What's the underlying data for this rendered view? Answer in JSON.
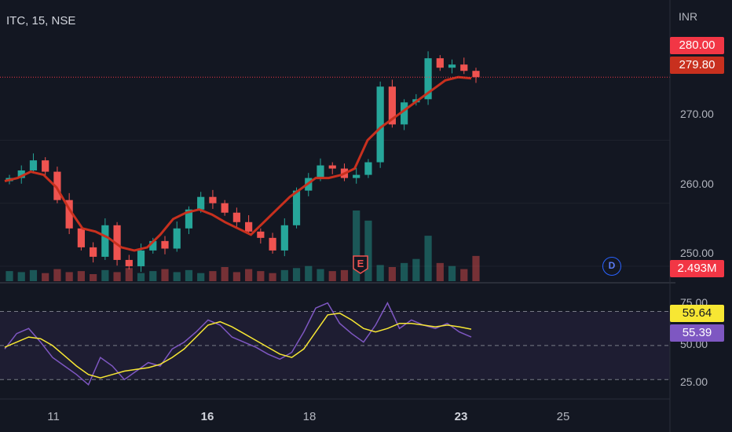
{
  "header": {
    "title": "ITC, 15, NSE"
  },
  "currency": "INR",
  "chart_data": [
    {
      "type": "candlestick",
      "title": "ITC, 15, NSE",
      "y_ticks": [
        "270.00",
        "260.00",
        "250.00"
      ],
      "ylim": [
        248,
        290
      ],
      "x_ticks": [
        {
          "label": "11",
          "bold": false
        },
        {
          "label": "16",
          "bold": true
        },
        {
          "label": "18",
          "bold": false
        },
        {
          "label": "23",
          "bold": true
        },
        {
          "label": "25",
          "bold": false
        }
      ],
      "series": [
        {
          "name": "",
          "values": [
            264.0,
            265.2,
            266.8,
            265.0,
            260.5,
            256.0,
            253.0,
            251.5,
            256.5,
            251.0,
            250.0,
            252.5,
            254.0,
            252.8,
            256.0,
            259.0,
            261.0,
            260.0,
            258.5,
            257.0,
            255.5,
            254.5,
            252.5,
            256.5,
            262.0,
            264.0,
            266.0,
            265.5,
            264.0,
            264.5,
            266.5,
            278.5,
            272.5,
            276.0,
            276.5,
            283.0,
            281.5,
            282.0,
            281.0,
            280.0
          ]
        },
        {
          "name": "",
          "values": [
            263.5,
            264.0,
            265.0,
            264.5,
            262.5,
            259.0,
            256.0,
            255.5,
            254.5,
            253.0,
            252.5,
            253.0,
            255.0,
            257.5,
            258.5,
            259.0,
            258.2,
            257.0,
            256.0,
            255.0,
            257.0,
            259.0,
            261.0,
            262.5,
            264.0,
            264.0,
            264.5,
            265.5,
            270.0,
            272.0,
            273.5,
            275.0,
            276.5,
            278.0,
            279.5,
            280.0,
            279.8
          ]
        }
      ],
      "volume_label": "2.493M",
      "volume_values": [
        1.0,
        0.9,
        1.1,
        0.8,
        1.2,
        0.9,
        1.0,
        0.7,
        1.1,
        0.9,
        1.3,
        0.8,
        1.0,
        1.2,
        0.9,
        1.1,
        0.8,
        1.0,
        1.4,
        0.9,
        1.2,
        1.0,
        0.8,
        1.1,
        1.3,
        1.5,
        1.2,
        1.0,
        1.1,
        7.0,
        6.0,
        1.6,
        1.4,
        1.8,
        2.2,
        4.5,
        1.8,
        1.5,
        1.2,
        2.5
      ],
      "last_price": "280.00",
      "ma_value": "279.80",
      "events": [
        "E",
        "D"
      ]
    },
    {
      "type": "line",
      "title": "",
      "y_ticks": [
        "75.00",
        "50.00",
        "25.00"
      ],
      "ylim": [
        20,
        85
      ],
      "band": [
        30,
        70
      ],
      "series": [
        {
          "name": "",
          "values": [
            48,
            57,
            60,
            52,
            43,
            38,
            33,
            27,
            43,
            38,
            30,
            35,
            40,
            38,
            48,
            52,
            58,
            65,
            62,
            55,
            52,
            49,
            45,
            42,
            46,
            58,
            72,
            75,
            63,
            57,
            52,
            62,
            75,
            60,
            65,
            62,
            60,
            63,
            58,
            55
          ]
        },
        {
          "name": "",
          "values": [
            49,
            52,
            55,
            54,
            50,
            44,
            38,
            33,
            31,
            33,
            35,
            36,
            37,
            39,
            43,
            48,
            55,
            62,
            64,
            61,
            57,
            53,
            49,
            45,
            43,
            48,
            58,
            68,
            69,
            65,
            60,
            58,
            60,
            63,
            63,
            62,
            61,
            62,
            61,
            59.6
          ]
        }
      ],
      "ma_value": "59.64",
      "rsi_value": "55.39"
    }
  ]
}
